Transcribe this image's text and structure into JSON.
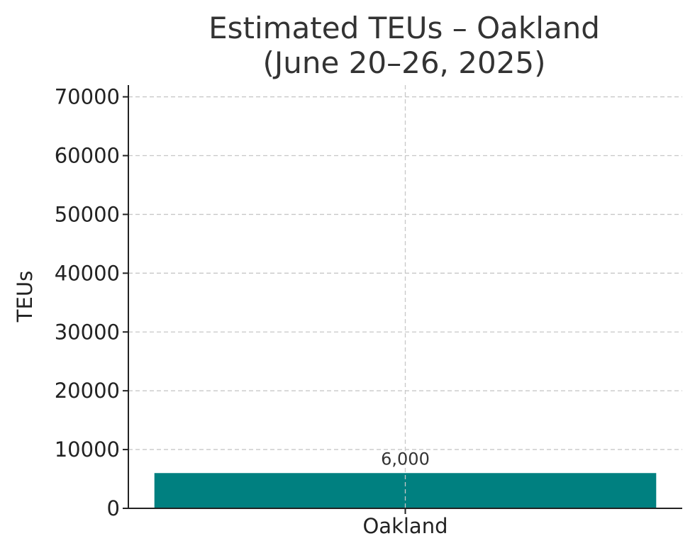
{
  "chart_data": {
    "type": "bar",
    "title_lines": [
      "Estimated TEUs – Oakland",
      "(June 20–26, 2025)"
    ],
    "categories": [
      "Oakland"
    ],
    "values": [
      6000
    ],
    "value_labels": [
      "6,000"
    ],
    "xlabel": "",
    "ylabel": "TEUs",
    "ylim": [
      0,
      72000
    ],
    "yticks": [
      0,
      10000,
      20000,
      30000,
      40000,
      50000,
      60000,
      70000
    ],
    "ytick_labels": [
      "0",
      "10000",
      "20000",
      "30000",
      "40000",
      "50000",
      "60000",
      "70000"
    ],
    "grid": true,
    "bar_color": "#008080"
  }
}
